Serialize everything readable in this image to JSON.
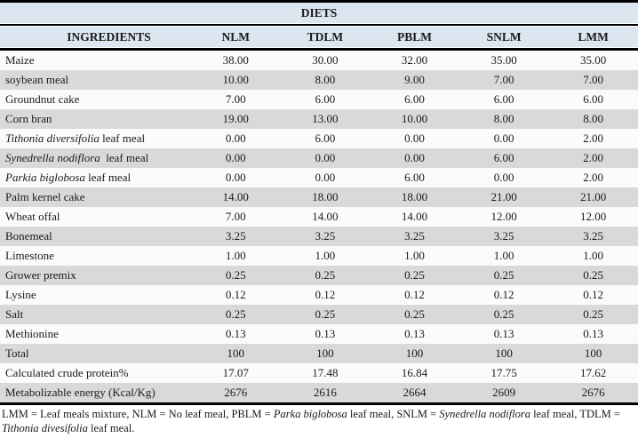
{
  "table": {
    "title": "DIETS",
    "columns": [
      "INGREDIENTS",
      "NLM",
      "TDLM",
      "PBLM",
      "SNLM",
      "LMM"
    ],
    "rows": [
      {
        "ingredient": [
          {
            "text": "Maize"
          }
        ],
        "values": [
          "38.00",
          "30.00",
          "32.00",
          "35.00",
          "35.00"
        ]
      },
      {
        "ingredient": [
          {
            "text": "soybean meal"
          }
        ],
        "values": [
          "10.00",
          "8.00",
          "9.00",
          "7.00",
          "7.00"
        ]
      },
      {
        "ingredient": [
          {
            "text": "Groundnut cake"
          }
        ],
        "values": [
          "7.00",
          "6.00",
          "6.00",
          "6.00",
          "6.00"
        ]
      },
      {
        "ingredient": [
          {
            "text": "Corn bran"
          }
        ],
        "values": [
          "19.00",
          "13.00",
          "10.00",
          "8.00",
          "8.00"
        ]
      },
      {
        "ingredient": [
          {
            "text": "Tithonia diversifolia",
            "italic": true
          },
          {
            "text": " leaf meal"
          }
        ],
        "values": [
          "0.00",
          "6.00",
          "0.00",
          "0.00",
          "2.00"
        ]
      },
      {
        "ingredient": [
          {
            "text": "Synedrella nodiflora",
            "italic": true
          },
          {
            "text": "  leaf meal"
          }
        ],
        "values": [
          "0.00",
          "0.00",
          "0.00",
          "6.00",
          "2.00"
        ]
      },
      {
        "ingredient": [
          {
            "text": "Parkia biglobosa",
            "italic": true
          },
          {
            "text": " leaf meal"
          }
        ],
        "values": [
          "0.00",
          "0.00",
          "6.00",
          "0.00",
          "2.00"
        ]
      },
      {
        "ingredient": [
          {
            "text": "Palm kernel cake"
          }
        ],
        "values": [
          "14.00",
          "18.00",
          "18.00",
          "21.00",
          "21.00"
        ]
      },
      {
        "ingredient": [
          {
            "text": "Wheat offal"
          }
        ],
        "values": [
          "7.00",
          "14.00",
          "14.00",
          "12.00",
          "12.00"
        ]
      },
      {
        "ingredient": [
          {
            "text": "Bonemeal"
          }
        ],
        "values": [
          "3.25",
          "3.25",
          "3.25",
          "3.25",
          "3.25"
        ]
      },
      {
        "ingredient": [
          {
            "text": "Limestone"
          }
        ],
        "values": [
          "1.00",
          "1.00",
          "1.00",
          "1.00",
          "1.00"
        ]
      },
      {
        "ingredient": [
          {
            "text": "Grower premix"
          }
        ],
        "values": [
          "0.25",
          "0.25",
          "0.25",
          "0.25",
          "0.25"
        ]
      },
      {
        "ingredient": [
          {
            "text": "Lysine"
          }
        ],
        "values": [
          "0.12",
          "0.12",
          "0.12",
          "0.12",
          "0.12"
        ]
      },
      {
        "ingredient": [
          {
            "text": "Salt"
          }
        ],
        "values": [
          "0.25",
          "0.25",
          "0.25",
          "0.25",
          "0.25"
        ]
      },
      {
        "ingredient": [
          {
            "text": "Methionine"
          }
        ],
        "values": [
          "0.13",
          "0.13",
          "0.13",
          "0.13",
          "0.13"
        ]
      },
      {
        "ingredient": [
          {
            "text": "Total"
          }
        ],
        "values": [
          "100",
          "100",
          "100",
          "100",
          "100"
        ]
      },
      {
        "ingredient": [
          {
            "text": "Calculated crude protein%"
          }
        ],
        "values": [
          "17.07",
          "17.48",
          "16.84",
          "17.75",
          "17.62"
        ]
      },
      {
        "ingredient": [
          {
            "text": "Metabolizable energy (Kcal/Kg)"
          }
        ],
        "values": [
          "2676",
          "2616",
          "2664",
          "2609",
          "2676"
        ]
      }
    ],
    "footnote": [
      {
        "text": "LMM = Leaf meals mixture, NLM = No leaf meal, PBLM = "
      },
      {
        "text": "Parka biglobosa",
        "italic": true
      },
      {
        "text": " leaf meal, SNLM = "
      },
      {
        "text": "Synedrella nodiflora",
        "italic": true
      },
      {
        "text": " leaf meal, TDLM = "
      },
      {
        "text": "Tithonia divesifolia",
        "italic": true
      },
      {
        "text": " leaf meal."
      }
    ]
  },
  "colors": {
    "header_bg": "#dce6f1",
    "row_bg": "#fbfbfb",
    "row_stripe_bg": "#d9d9d9",
    "border": "#000000",
    "text": "#1a1a1a"
  }
}
